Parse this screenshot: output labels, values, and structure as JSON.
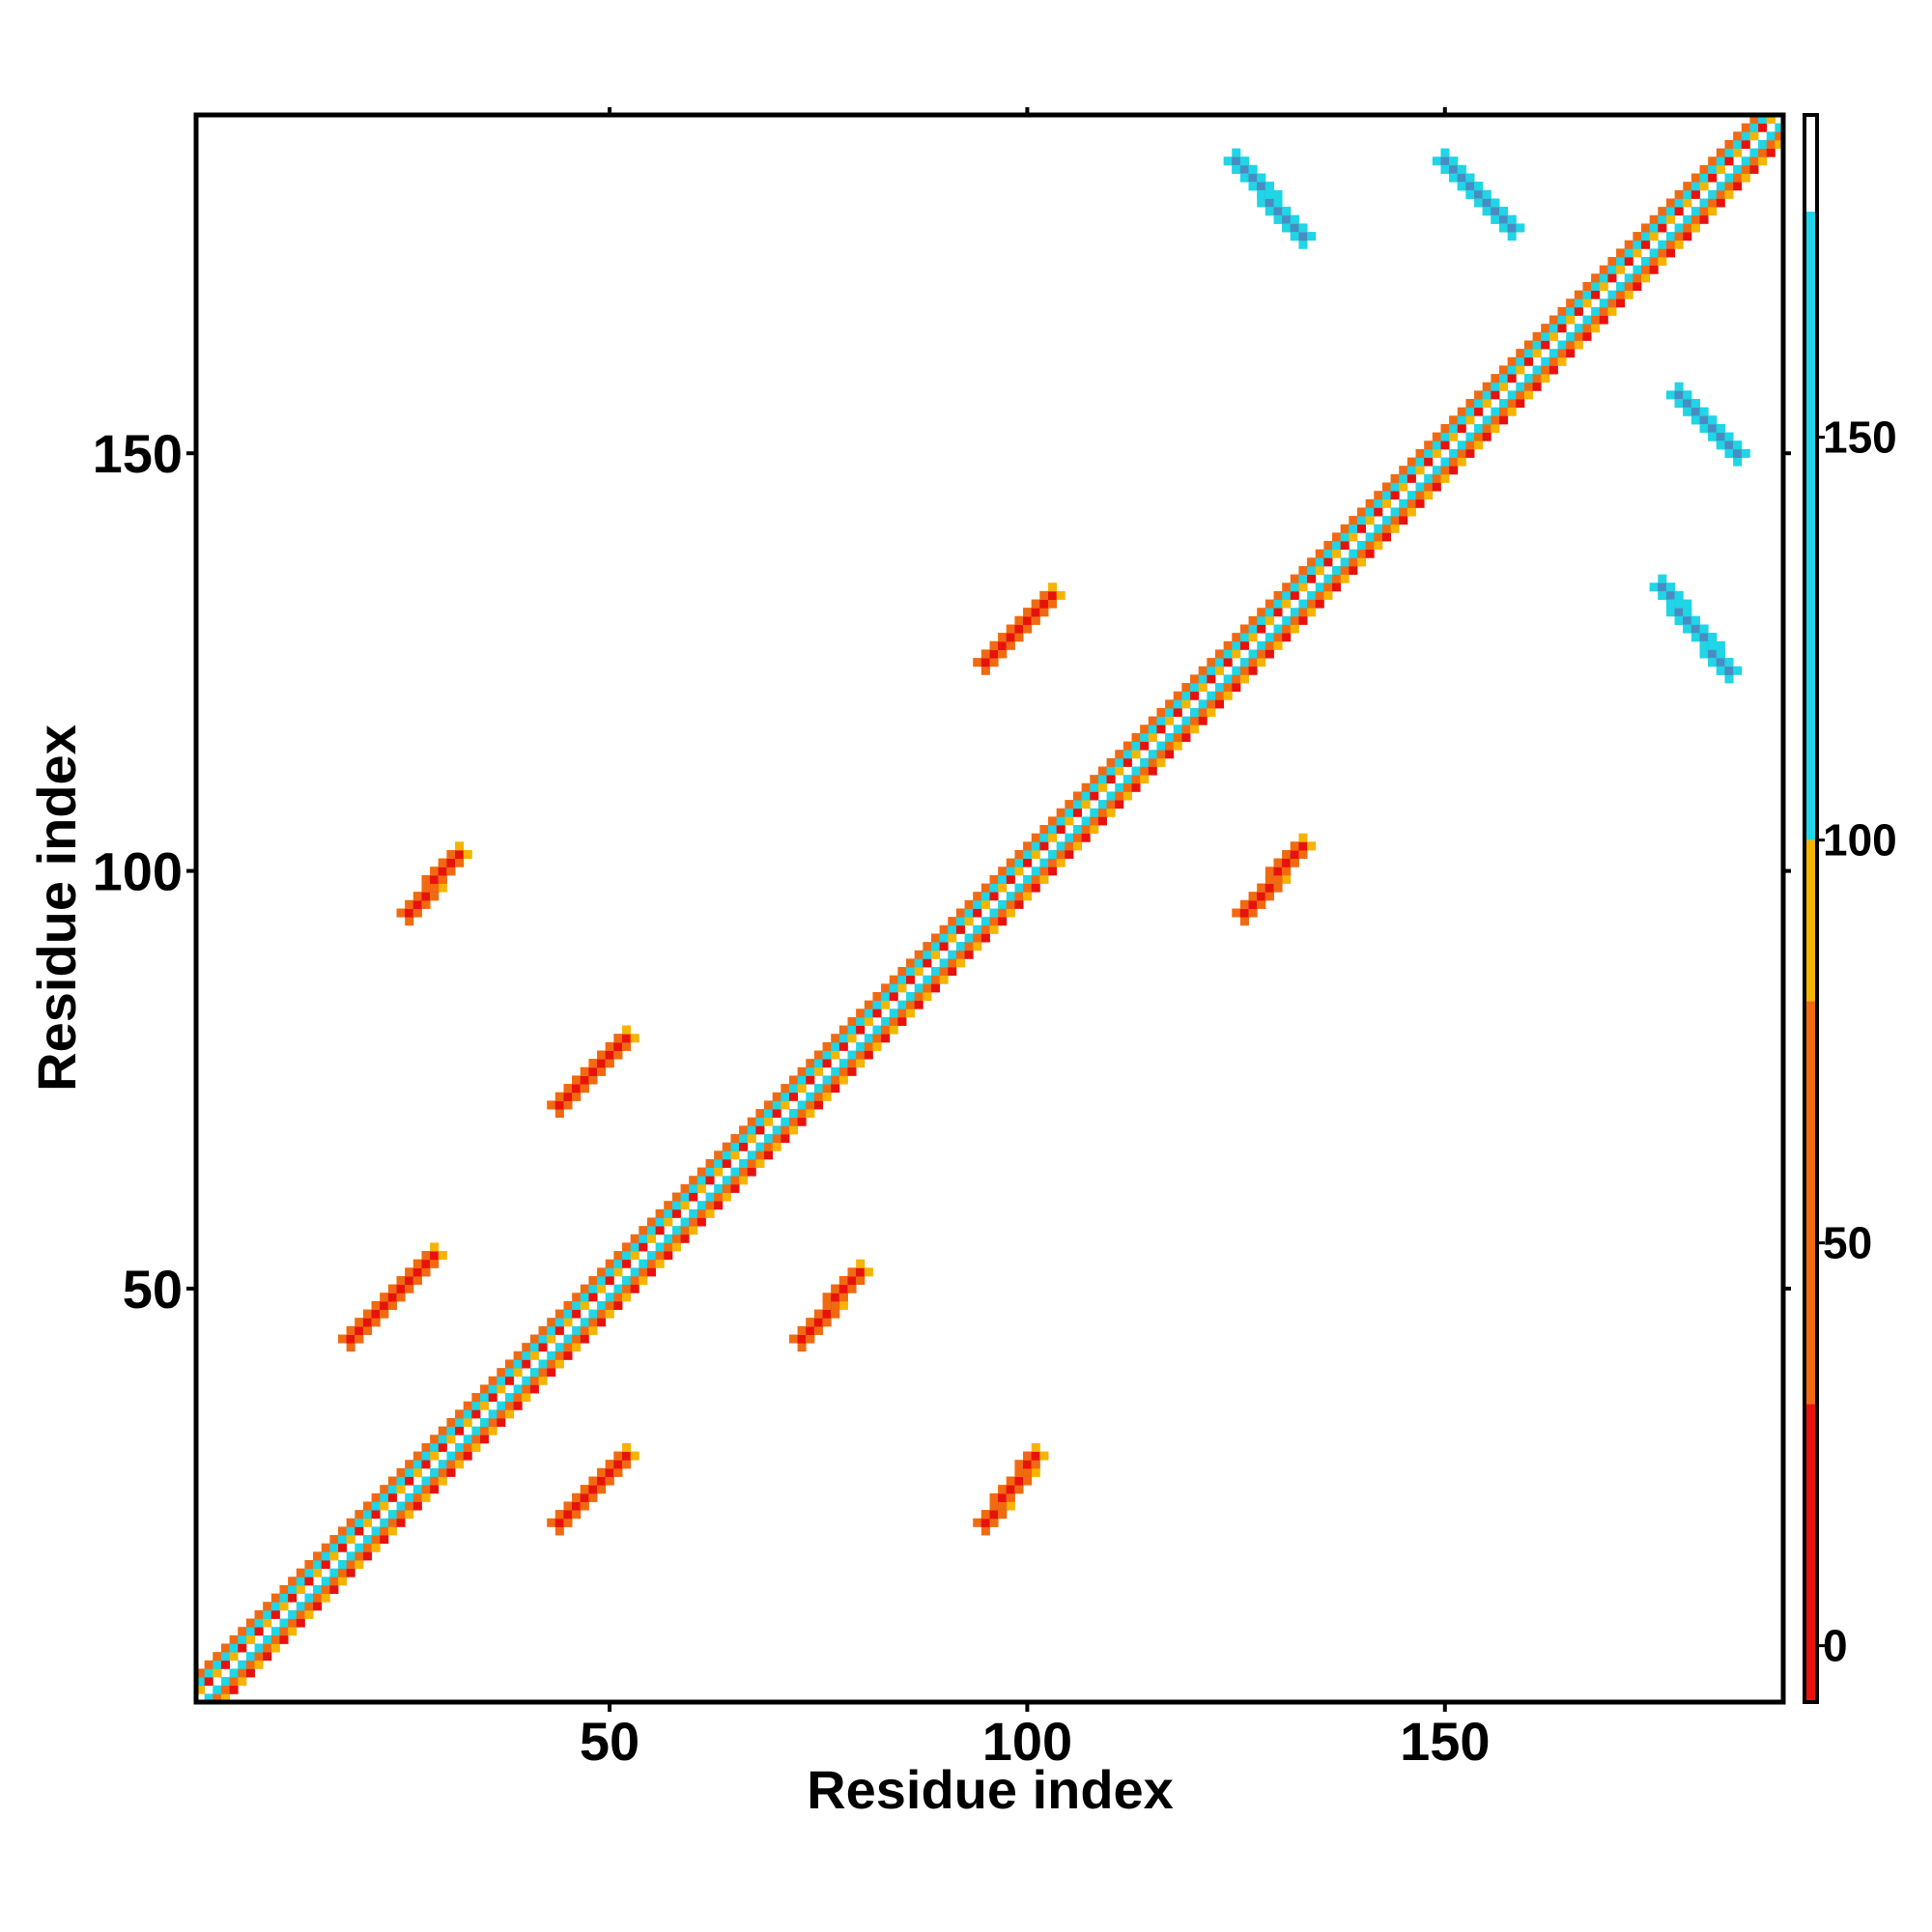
{
  "chart_data": {
    "type": "heatmap",
    "xlabel": "Residue index",
    "ylabel": "Residue index",
    "xlim": [
      1,
      190
    ],
    "ylim": [
      1,
      190
    ],
    "x_ticks": [
      50,
      100,
      150
    ],
    "y_ticks": [
      50,
      100,
      150
    ],
    "colorbar": {
      "ticks": [
        0,
        50,
        100,
        150
      ],
      "range": [
        -7,
        190
      ],
      "bands": [
        {
          "from": -7,
          "to": 30,
          "color": "#E8120C"
        },
        {
          "from": 30,
          "to": 80,
          "color": "#F16A12"
        },
        {
          "from": 80,
          "to": 100,
          "color": "#F5B400"
        },
        {
          "from": 100,
          "to": 178,
          "color": "#1FD5E6"
        },
        {
          "from": 178,
          "to": 190,
          "color": "#4A8BC2"
        }
      ],
      "white_above": 178
    },
    "value_classes": {
      "red": "#E8120C",
      "dark_orange": "#F16A12",
      "orange": "#F5B400",
      "cyan": "#1FD5E6",
      "blue": "#4A8BC2"
    },
    "regions": [
      {
        "feature": "diagonal band",
        "x_start": 1,
        "y_start": 1,
        "x_end": 190,
        "y_end": 190,
        "width": 6,
        "pattern": "alternating red/orange/cyan with white center"
      },
      {
        "feature": "helix-helix contact",
        "x_start": 26,
        "y_start": 95,
        "x_end": 32,
        "y_end": 102,
        "class": "red"
      },
      {
        "feature": "helix-helix contact",
        "x_start": 44,
        "y_start": 72,
        "x_end": 52,
        "y_end": 80,
        "class": "red"
      },
      {
        "feature": "helix-helix contact",
        "x_start": 19,
        "y_start": 44,
        "x_end": 29,
        "y_end": 54,
        "class": "red"
      },
      {
        "feature": "helix-helix contact",
        "x_start": 73,
        "y_start": 44,
        "x_end": 80,
        "y_end": 52,
        "class": "red"
      },
      {
        "feature": "helix-helix contact",
        "x_start": 44,
        "y_start": 22,
        "x_end": 52,
        "y_end": 30,
        "class": "red"
      },
      {
        "feature": "helix-helix contact",
        "x_start": 95,
        "y_start": 22,
        "x_end": 101,
        "y_end": 30,
        "class": "red"
      },
      {
        "feature": "helix-helix contact",
        "x_start": 126,
        "y_start": 95,
        "x_end": 133,
        "y_end": 103,
        "class": "red"
      },
      {
        "feature": "helix-helix contact",
        "x_start": 95,
        "y_start": 125,
        "x_end": 103,
        "y_end": 133,
        "class": "red"
      },
      {
        "feature": "anti-parallel contact",
        "x_start": 125,
        "y_start": 185,
        "x_end": 133,
        "y_end": 176,
        "class": "blue"
      },
      {
        "feature": "anti-parallel contact",
        "x_start": 150,
        "y_start": 185,
        "x_end": 158,
        "y_end": 177,
        "class": "blue"
      },
      {
        "feature": "anti-parallel contact",
        "x_start": 178,
        "y_start": 157,
        "x_end": 185,
        "y_end": 150,
        "class": "blue"
      },
      {
        "feature": "anti-parallel contact",
        "x_start": 176,
        "y_start": 134,
        "x_end": 184,
        "y_end": 124,
        "class": "blue"
      }
    ]
  }
}
